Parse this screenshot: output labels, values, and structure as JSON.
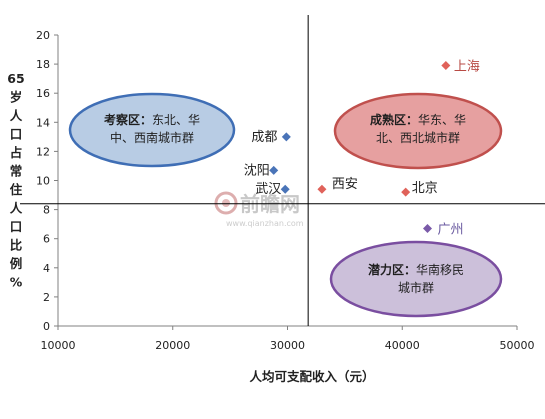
{
  "chart_data": {
    "type": "scatter",
    "xlabel": "人均可支配收入（元）",
    "ylabel": "65岁人口占常住人口比例%",
    "xlim": [
      10000,
      50000
    ],
    "ylim": [
      0,
      20
    ],
    "xticks": [
      10000,
      20000,
      30000,
      40000,
      50000
    ],
    "yticks": [
      0,
      2,
      4,
      6,
      8,
      10,
      12,
      14,
      16,
      18,
      20
    ],
    "grid": false,
    "reference_lines": {
      "x": 31800,
      "y": 8.4
    },
    "points": [
      {
        "label": "上海",
        "x": 43800,
        "y": 17.9,
        "color": "#e0625a",
        "label_color": "#b84a44"
      },
      {
        "label": "成都",
        "x": 29900,
        "y": 13.0,
        "color": "#4a74b8",
        "label_color": "#222222"
      },
      {
        "label": "沈阳",
        "x": 28800,
        "y": 10.7,
        "color": "#4a74b8",
        "label_color": "#222222"
      },
      {
        "label": "武汉",
        "x": 29800,
        "y": 9.4,
        "color": "#4a74b8",
        "label_color": "#222222"
      },
      {
        "label": "西安",
        "x": 33000,
        "y": 9.4,
        "color": "#e0625a",
        "label_color": "#222222"
      },
      {
        "label": "北京",
        "x": 40300,
        "y": 9.2,
        "color": "#e0625a",
        "label_color": "#222222"
      },
      {
        "label": "广州",
        "x": 42200,
        "y": 6.7,
        "color": "#7a5aa8",
        "label_color": "#6a5aa0"
      }
    ],
    "zones": [
      {
        "name": "考察区",
        "text_line1_rest": "东北、华",
        "text_line2": "中、西南城市群",
        "fill": "#b8cce4",
        "stroke": "#3f6eb5"
      },
      {
        "name": "成熟区",
        "text_line1_rest": "华东、华",
        "text_line2": "北、西北城市群",
        "fill": "#e6a0a0",
        "stroke": "#c0504d"
      },
      {
        "name": "潜力区",
        "text_line1_rest": "华南移民",
        "text_line2": "城市群",
        "fill": "#ccc0da",
        "stroke": "#7a4ea0"
      }
    ]
  },
  "watermark": {
    "brand": "前瞻网",
    "url": "www.qianzhan.com"
  }
}
